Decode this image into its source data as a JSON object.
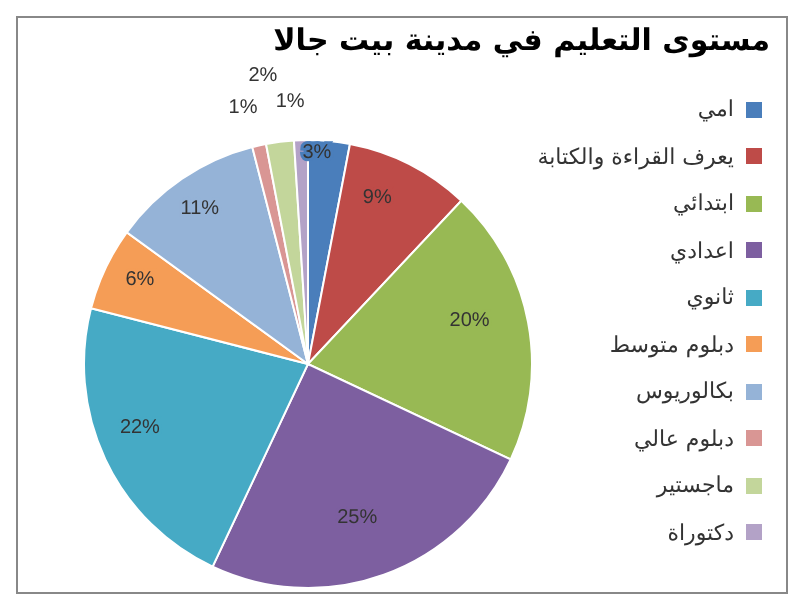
{
  "chart_data": {
    "type": "pie",
    "title": "مستوى التعليم في مدينة بيت جالا",
    "categories": [
      "امي",
      "يعرف القراءة والكتابة",
      "ابتدائي",
      "اعدادي",
      "ثانوي",
      "دبلوم متوسط",
      "بكالوريوس",
      "دبلوم عالي",
      "ماجستير",
      "دكتوراة"
    ],
    "values": [
      3,
      9,
      20,
      25,
      22,
      6,
      11,
      1,
      2,
      1
    ],
    "value_labels": [
      "3%",
      "9%",
      "20%",
      "25%",
      "22%",
      "6%",
      "11%",
      "1%",
      "2%",
      "1%"
    ],
    "colors": [
      "#4a7ebb",
      "#be4b48",
      "#98b954",
      "#7d5fa0",
      "#46aac5",
      "#f59d56",
      "#95b3d7",
      "#d99694",
      "#c3d69b",
      "#b3a2c7"
    ],
    "legend": "right"
  }
}
